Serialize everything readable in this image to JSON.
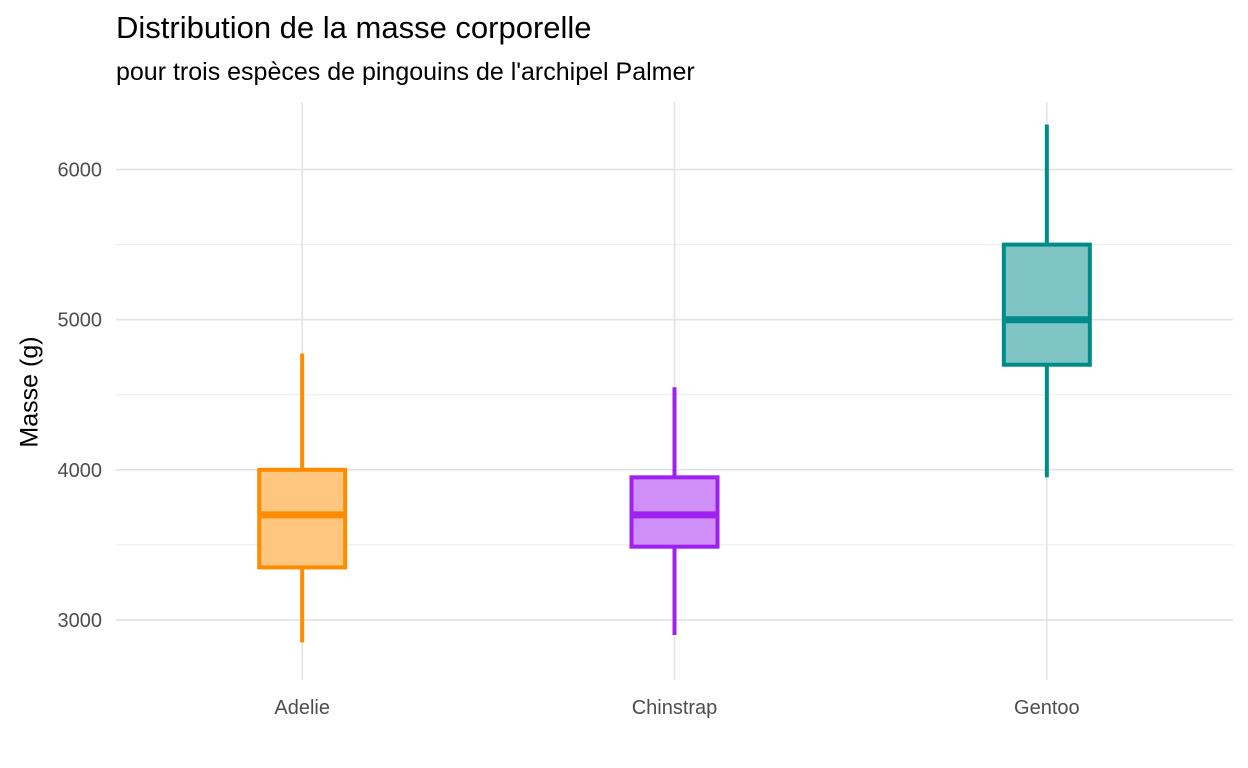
{
  "chart_data": {
    "type": "boxplot",
    "title": "Distribution de la masse corporelle",
    "subtitle": "pour trois espèces de pingouins de l'archipel Palmer",
    "xlabel": "",
    "ylabel": "Masse (g)",
    "ylim": [
      2600,
      6450
    ],
    "yticks": [
      3000,
      4000,
      5000,
      6000
    ],
    "ytick_labels": [
      "3000",
      "4000",
      "5000",
      "6000"
    ],
    "grid": true,
    "legend": "none",
    "categories": [
      "Adelie",
      "Chinstrap",
      "Gentoo"
    ],
    "boxes": [
      {
        "category": "Adelie",
        "min": 2850,
        "q1": 3350,
        "median": 3700,
        "q3": 4000,
        "max": 4775,
        "color": "#FF8C00",
        "fill": "#FFC680"
      },
      {
        "category": "Chinstrap",
        "min": 2900,
        "q1": 3488,
        "median": 3700,
        "q3": 3950,
        "max": 4550,
        "color": "#A020F0",
        "fill": "#D08FF7"
      },
      {
        "category": "Gentoo",
        "min": 3950,
        "q1": 4700,
        "median": 5000,
        "q3": 5500,
        "max": 6300,
        "color": "#008B8B",
        "fill": "#7FC5C5"
      }
    ]
  }
}
